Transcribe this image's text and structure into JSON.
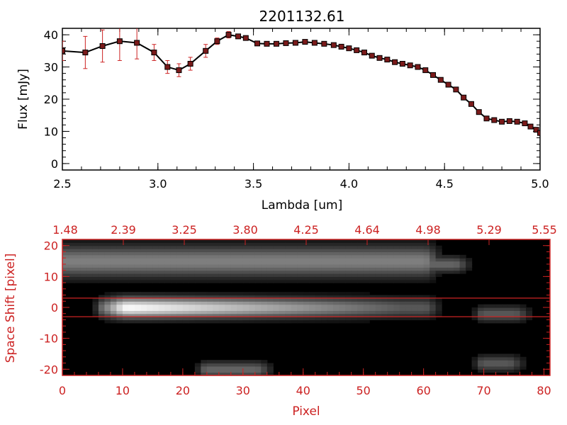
{
  "title": "2201132.61",
  "colors": {
    "axis": "#000000",
    "accent": "#cc2222",
    "line": "#000000",
    "marker": "#cc2222",
    "image_bg": "#000000"
  },
  "chart_data": [
    {
      "type": "line",
      "title": "2201132.61",
      "xlabel": "Lambda [um]",
      "ylabel": "Flux [mJy]",
      "xlim": [
        2.5,
        5.0
      ],
      "ylim": [
        -2,
        42
      ],
      "x_ticks": [
        "2.5",
        "3.0",
        "3.5",
        "4.0",
        "4.5",
        "5.0"
      ],
      "y_ticks": [
        "0",
        "10",
        "20",
        "30",
        "40"
      ],
      "grid": false,
      "series": [
        {
          "x": [
            2.5,
            2.62,
            2.71,
            2.8,
            2.89,
            2.98,
            3.05,
            3.11,
            3.17,
            3.25,
            3.31,
            3.37,
            3.42,
            3.46,
            3.52,
            3.57,
            3.62,
            3.67,
            3.72,
            3.77,
            3.82,
            3.87,
            3.92,
            3.96,
            4.0,
            4.04,
            4.08,
            4.12,
            4.16,
            4.2,
            4.24,
            4.28,
            4.32,
            4.36,
            4.4,
            4.44,
            4.48,
            4.52,
            4.56,
            4.6,
            4.64,
            4.68,
            4.72,
            4.76,
            4.8,
            4.84,
            4.88,
            4.92,
            4.95,
            4.98,
            5.0
          ],
          "y": [
            35,
            34.5,
            36.5,
            38,
            37.5,
            34.5,
            30,
            29,
            31,
            35,
            38,
            40,
            39.5,
            39,
            37.3,
            37.2,
            37.2,
            37.4,
            37.5,
            37.8,
            37.5,
            37.2,
            36.8,
            36.3,
            35.8,
            35.2,
            34.5,
            33.5,
            32.8,
            32.3,
            31.5,
            31,
            30.5,
            30,
            29,
            27.5,
            26,
            24.5,
            23,
            20.5,
            18.5,
            16,
            14,
            13.5,
            13,
            13.2,
            13,
            12.5,
            11.5,
            10.5,
            9.5
          ],
          "error": [
            3,
            5,
            5,
            6,
            5,
            2.5,
            2,
            2,
            2,
            2,
            1,
            1,
            0,
            0,
            0,
            0,
            0,
            0,
            0,
            0,
            0,
            0,
            0,
            0,
            0,
            0,
            0,
            0,
            0,
            0,
            0,
            0,
            0,
            0,
            0,
            0,
            0,
            0,
            0,
            0,
            0,
            0,
            0,
            0,
            0,
            0,
            0,
            0,
            0,
            0,
            0
          ]
        }
      ]
    },
    {
      "type": "heatmap",
      "xlabel": "Pixel",
      "ylabel": "Space Shift [pixel]",
      "xlim": [
        0,
        81
      ],
      "ylim": [
        -22,
        22
      ],
      "x_ticks": [
        "0",
        "10",
        "20",
        "30",
        "40",
        "50",
        "60",
        "70",
        "80"
      ],
      "y_ticks": [
        "-20",
        "-10",
        "0",
        "10",
        "20"
      ],
      "top_ticks": [
        "1.48",
        "2.39",
        "3.25",
        "3.80",
        "4.25",
        "4.64",
        "4.98",
        "5.29",
        "5.55"
      ],
      "extraction_band": [
        -3,
        3
      ],
      "colormap": "grayscale",
      "bright_regions": [
        {
          "label": "main trace",
          "x_range": [
            7,
            60
          ],
          "y_center": 0,
          "peak_x": 11,
          "intensity": 1.0
        },
        {
          "label": "upper trace",
          "x_range": [
            0,
            60
          ],
          "y_center": 15,
          "intensity": 0.5
        },
        {
          "label": "blob",
          "x_range": [
            56,
            65
          ],
          "y_center": 14,
          "intensity": 0.4
        },
        {
          "label": "blob",
          "x_range": [
            24,
            32
          ],
          "y_center": -20,
          "intensity": 0.4
        },
        {
          "label": "blob",
          "x_range": [
            70,
            75
          ],
          "y_center": -2,
          "intensity": 0.35
        },
        {
          "label": "blob",
          "x_range": [
            70,
            74
          ],
          "y_center": -18,
          "intensity": 0.35
        }
      ]
    }
  ]
}
